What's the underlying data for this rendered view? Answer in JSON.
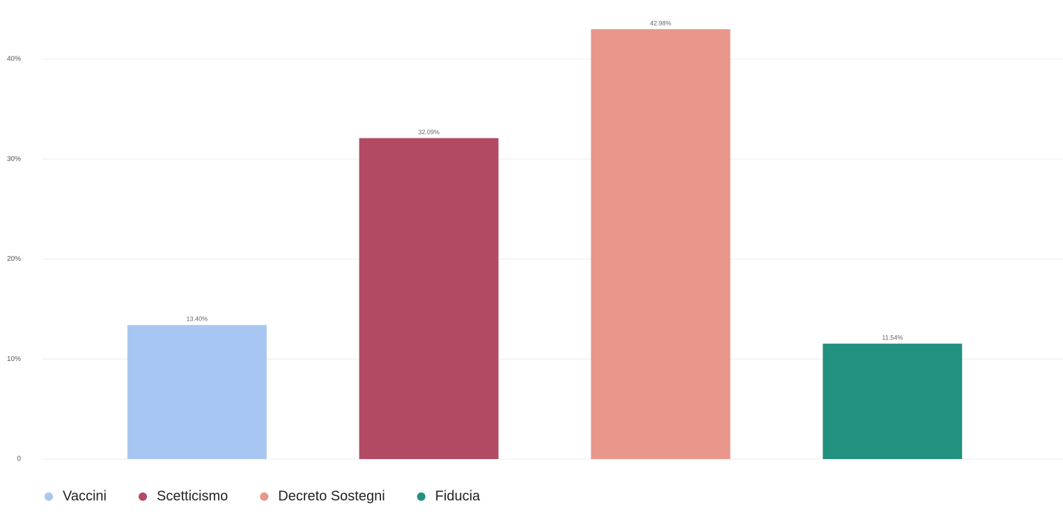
{
  "chart_data": {
    "type": "bar",
    "categories": [
      null
    ],
    "series": [
      {
        "name": "Vaccini",
        "color": "#a8c6f2",
        "values": [
          13.4
        ],
        "value_labels": [
          "13.40%"
        ]
      },
      {
        "name": "Scetticismo",
        "color": "#b34a63",
        "values": [
          32.09
        ],
        "value_labels": [
          "32.09%"
        ]
      },
      {
        "name": "Decreto Sostegni",
        "color": "#e8978a",
        "values": [
          42.98
        ],
        "value_labels": [
          "42.98%"
        ]
      },
      {
        "name": "Fiducia",
        "color": "#22917f",
        "values": [
          11.54
        ],
        "value_labels": [
          "11.54%"
        ]
      }
    ],
    "ylim": [
      0,
      45.9
    ],
    "yticks": [
      0,
      {
        "value": 10,
        "label": "10%"
      },
      {
        "value": 20,
        "label": "20%"
      },
      {
        "value": 30,
        "label": "30%"
      },
      {
        "value": 40,
        "label": "40%"
      }
    ],
    "grid": true,
    "legend": "bottom-left"
  }
}
